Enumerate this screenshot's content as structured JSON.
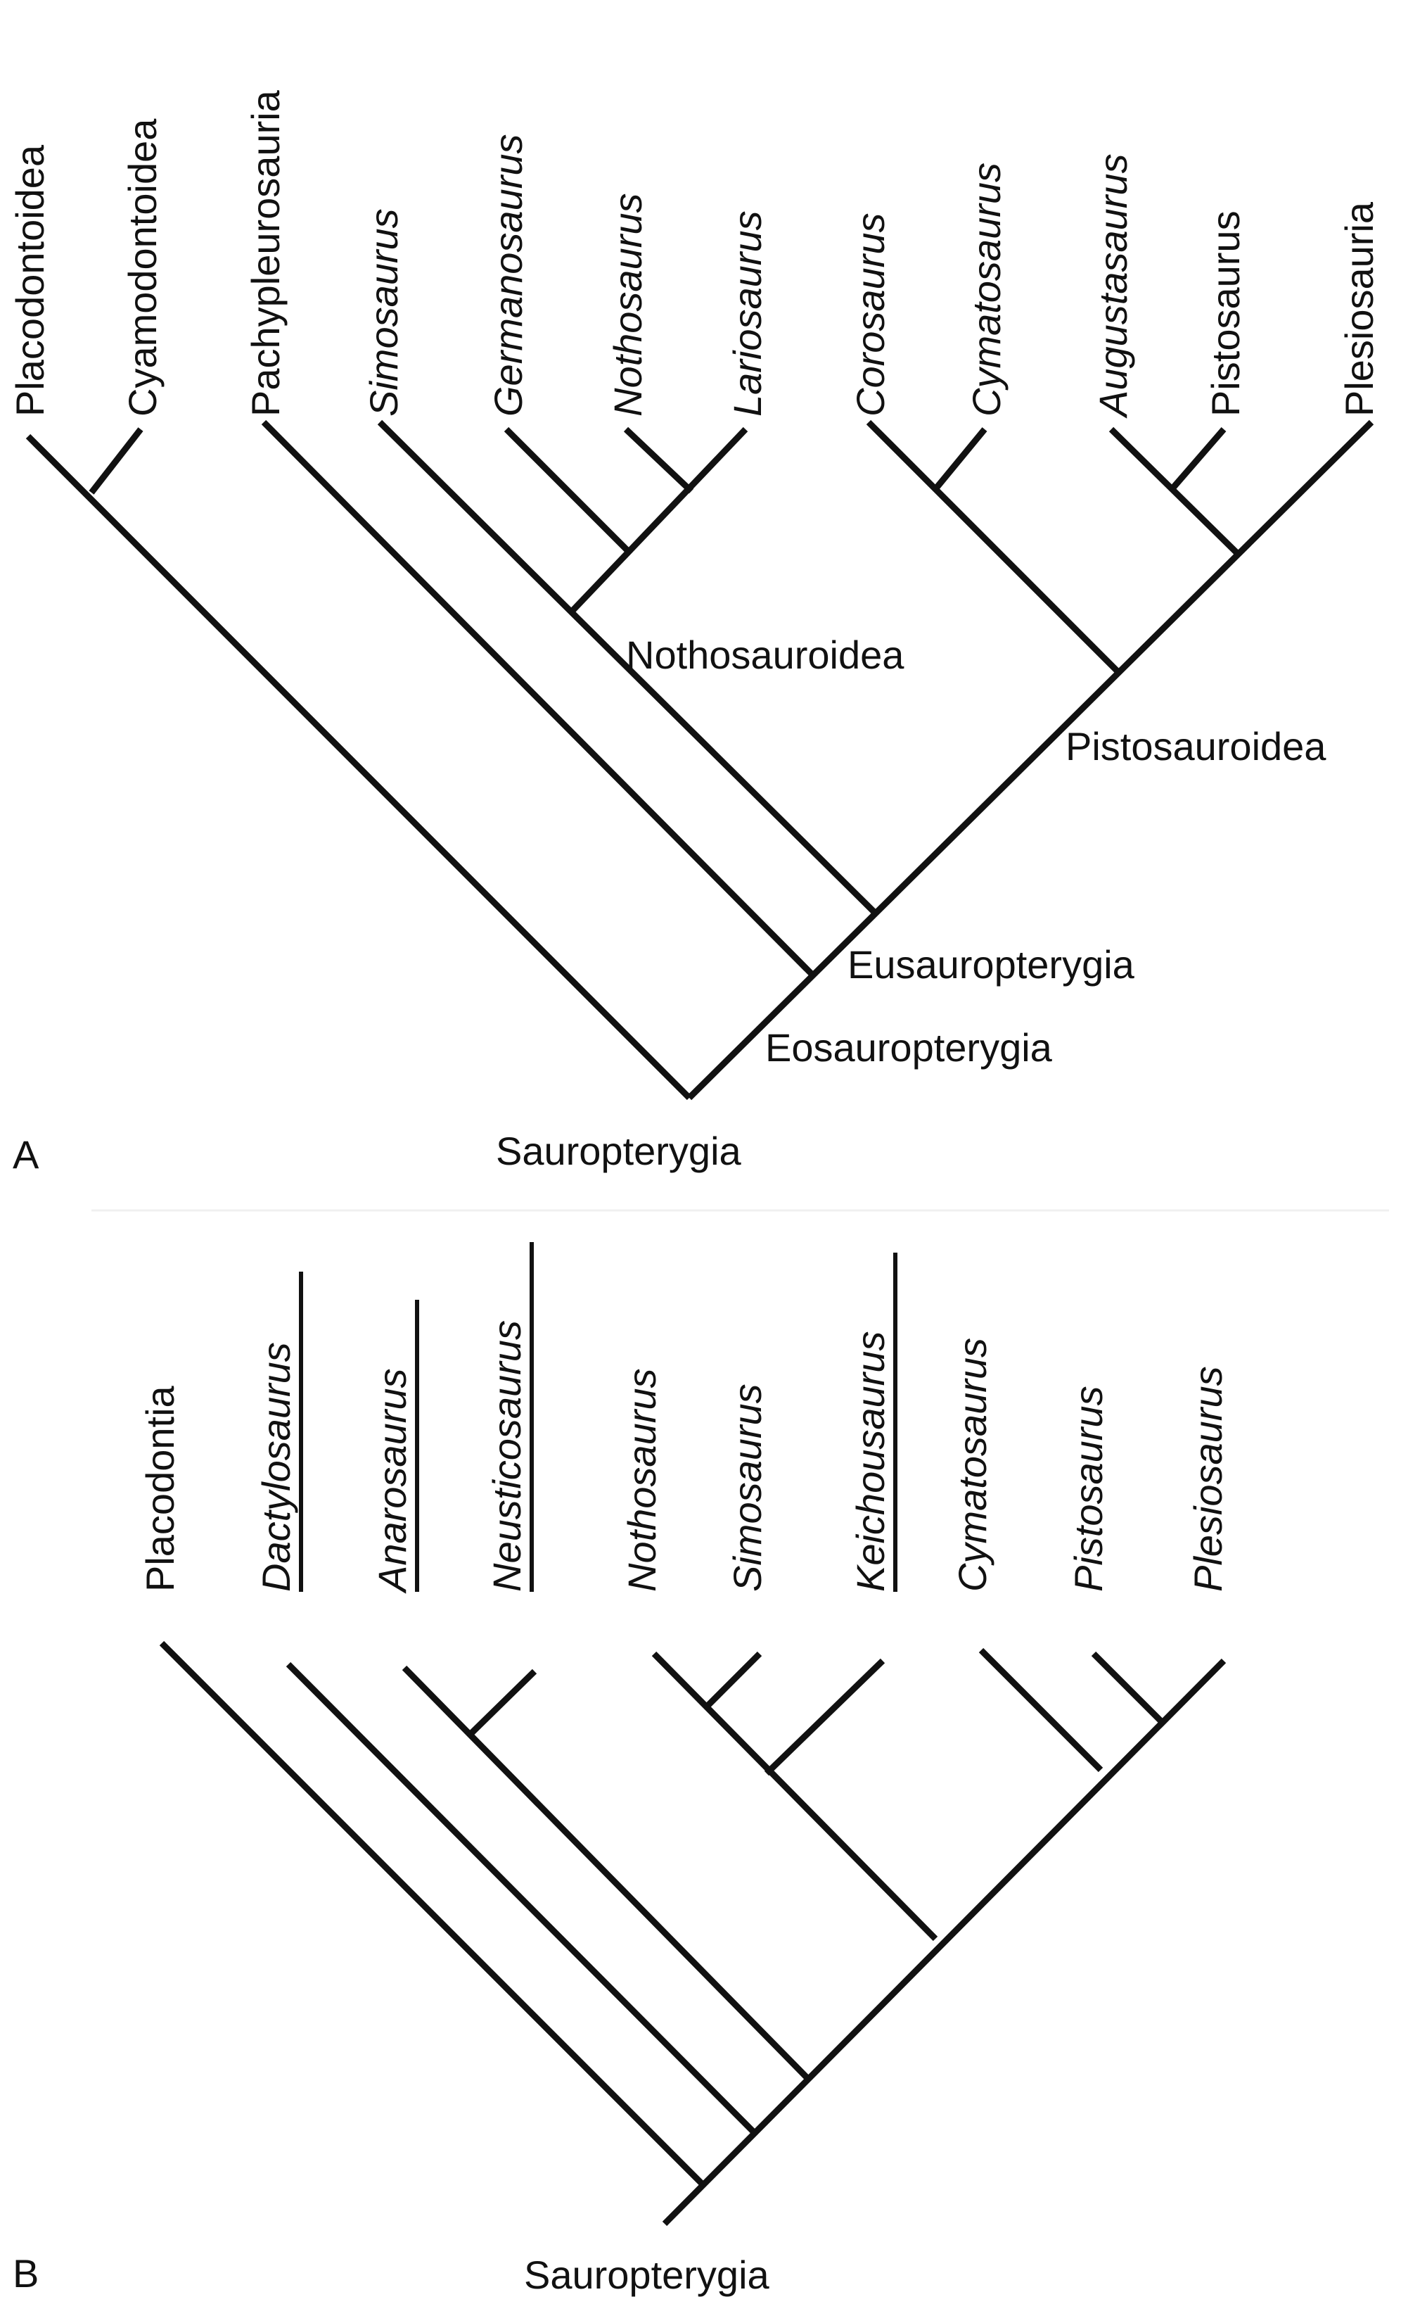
{
  "panel_a": {
    "letter": "A",
    "taxa": {
      "placodontoidea": "Placodontoidea",
      "cyamodontoidea": "Cyamodontoidea",
      "pachypleurosauria": "Pachypleurosauria",
      "simosaurus": "Simosaurus",
      "germanosaurus": "Germanosaurus",
      "nothosaurus": "Nothosaurus",
      "lariosaurus": "Lariosaurus",
      "corosaurus": "Corosaurus",
      "cymatosaurus": "Cymatosaurus",
      "augustasaurus": "Augustasaurus",
      "pistosaurus": "Pistosaurus",
      "plesiosauria": "Plesiosauria"
    },
    "clades": {
      "nothosauroidea": "Nothosauroidea",
      "pistosauroidea": "Pistosauroidea",
      "eusauropterygia": "Eusauropterygia",
      "eosauropterygia": "Eosauropterygia",
      "root": "Sauropterygia"
    }
  },
  "panel_b": {
    "letter": "B",
    "taxa": {
      "placodontia": "Placodontia",
      "dactylosaurus": "Dactylosaurus",
      "anarosaurus": "Anarosaurus",
      "neusticosaurus": "Neusticosaurus",
      "nothosaurus": "Nothosaurus",
      "simosaurus": "Simosaurus",
      "keichousaurus": "Keichousaurus",
      "cymatosaurus": "Cymatosaurus",
      "pistosaurus": "Pistosaurus",
      "plesiosaurus": "Plesiosaurus"
    },
    "clades": {
      "root": "Sauropterygia"
    }
  }
}
